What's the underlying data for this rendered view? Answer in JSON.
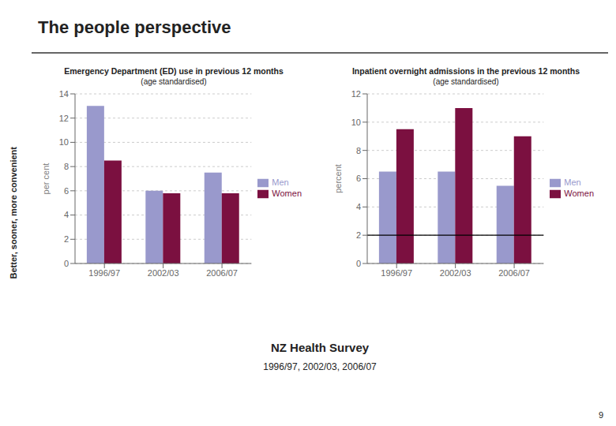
{
  "title": "The people perspective",
  "subtitle": "NZ Health Survey",
  "annotations": [
    "1996/97, 2002/03, 2006/07",
    "Better, sooner, more convenient",
    "9"
  ],
  "chart_data": [
    {
      "type": "bar",
      "title": "Emergency Department (ED) use in previous 12 months",
      "subtitle": "(age standardised)",
      "categories": [
        "1996/97",
        "2002/03",
        "2006/07"
      ],
      "series": [
        {
          "name": "Men",
          "color": "#9999cc",
          "values": [
            13.0,
            6.0,
            7.5
          ]
        },
        {
          "name": "Women",
          "color": "#7B1040",
          "values": [
            8.5,
            5.8,
            5.8
          ]
        }
      ],
      "ylabel": "per cent",
      "ylim": [
        0,
        14
      ],
      "yticks": [
        0,
        2,
        4,
        6,
        8,
        10,
        12,
        14
      ],
      "grid": true,
      "legend": "right"
    },
    {
      "type": "bar",
      "title": "Inpatient overnight admissions in the previous 12 months",
      "subtitle": "(age standardised)",
      "categories": [
        "1996/97",
        "2002/03",
        "2006/07"
      ],
      "series": [
        {
          "name": "Men",
          "color": "#9999cc",
          "values": [
            6.5,
            6.5,
            5.5
          ]
        },
        {
          "name": "Women",
          "color": "#7B1040",
          "values": [
            9.5,
            11.0,
            9.0
          ]
        }
      ],
      "ylabel": "percent",
      "ylim": [
        0,
        12
      ],
      "yticks": [
        0,
        2,
        4,
        6,
        8,
        10,
        12
      ],
      "hline": 2,
      "grid": true,
      "legend": "right"
    }
  ]
}
